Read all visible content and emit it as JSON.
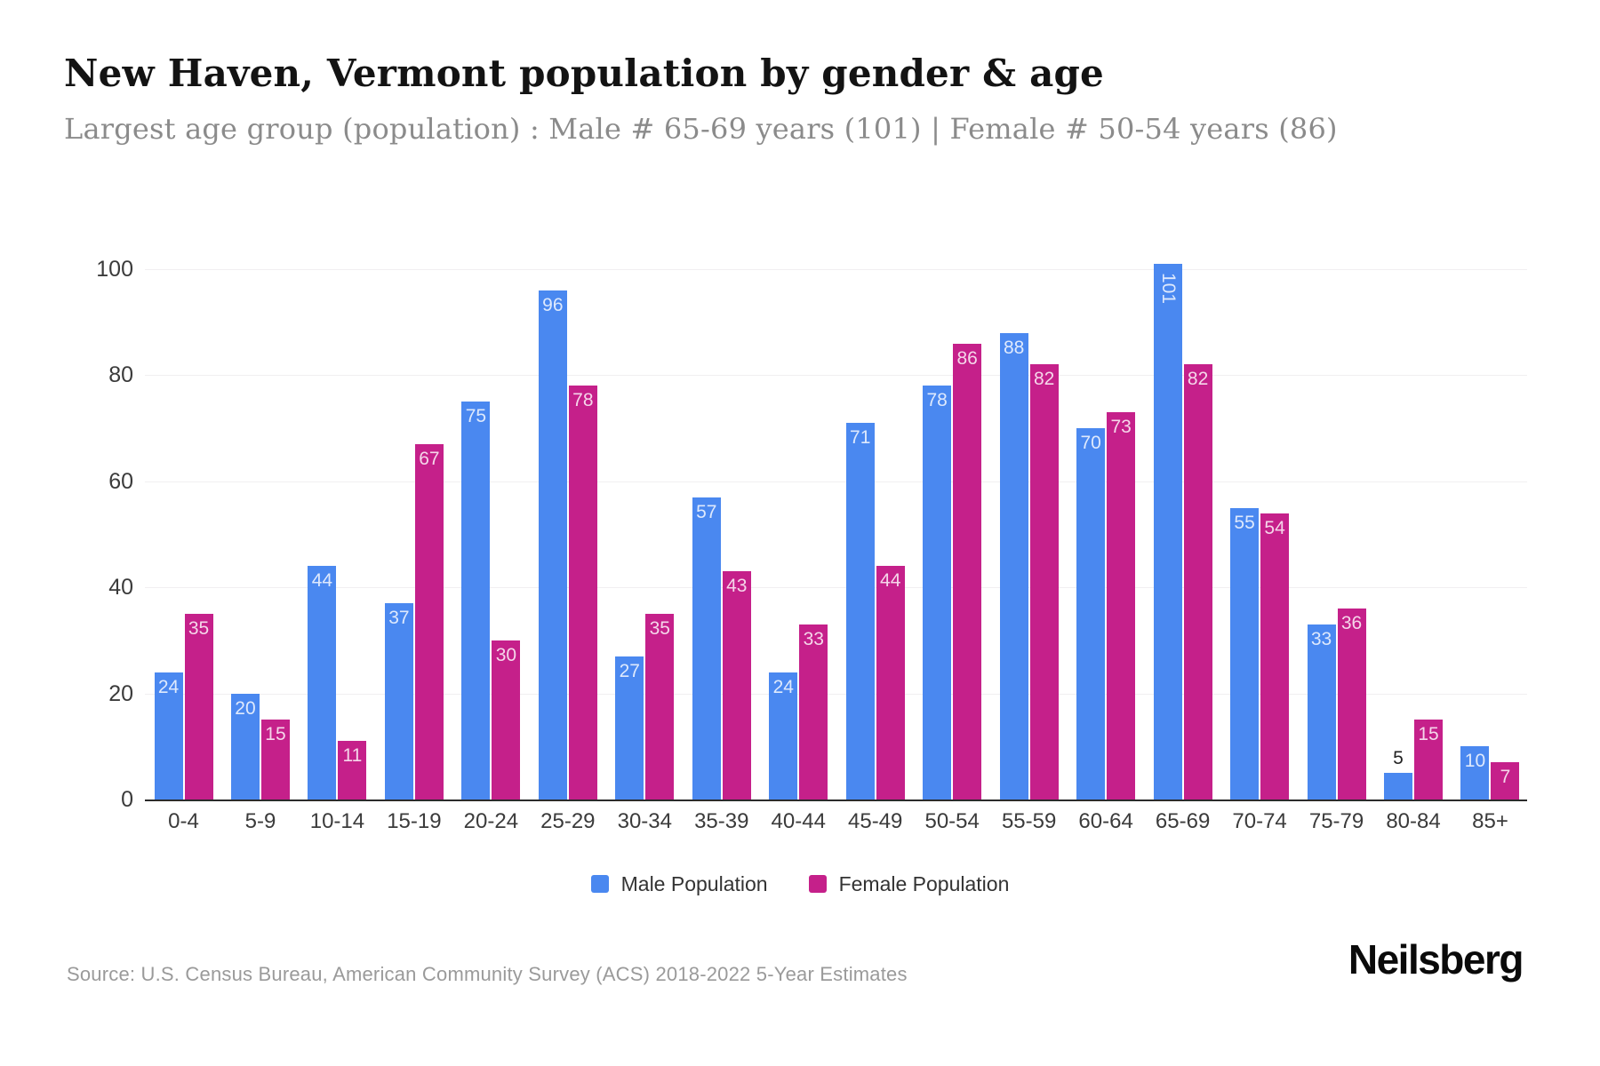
{
  "header": {
    "title": "New Haven, Vermont population by gender & age",
    "subtitle": "Largest age group (population) : Male # 65-69 years (101) | Female # 50-54 years (86)"
  },
  "footer": {
    "source": "Source: U.S. Census Bureau, American Community Survey (ACS) 2018-2022 5-Year Estimates",
    "brand": "Neilsberg"
  },
  "colors": {
    "male": "#4a88f0",
    "female": "#c5208a",
    "grid": "#f1eff1",
    "axis": "#2b2b2b"
  },
  "chart_data": {
    "type": "bar",
    "title": "New Haven, Vermont population by gender & age",
    "categories": [
      "0-4",
      "5-9",
      "10-14",
      "15-19",
      "20-24",
      "25-29",
      "30-34",
      "35-39",
      "40-44",
      "45-49",
      "50-54",
      "55-59",
      "60-64",
      "65-69",
      "70-74",
      "75-79",
      "80-84",
      "85+"
    ],
    "series": [
      {
        "name": "Male Population",
        "color": "#4a88f0",
        "values": [
          24,
          20,
          44,
          37,
          75,
          96,
          27,
          57,
          24,
          71,
          78,
          88,
          70,
          101,
          55,
          33,
          5,
          10
        ]
      },
      {
        "name": "Female Population",
        "color": "#c5208a",
        "values": [
          35,
          15,
          11,
          67,
          30,
          78,
          35,
          43,
          33,
          44,
          86,
          82,
          73,
          82,
          54,
          36,
          15,
          7
        ]
      }
    ],
    "xlabel": "",
    "ylabel": "",
    "yticks": [
      0,
      20,
      40,
      60,
      80,
      100
    ],
    "ylim": [
      0,
      105
    ],
    "grid": true,
    "legend_position": "bottom",
    "value_labels": "inside-top"
  }
}
